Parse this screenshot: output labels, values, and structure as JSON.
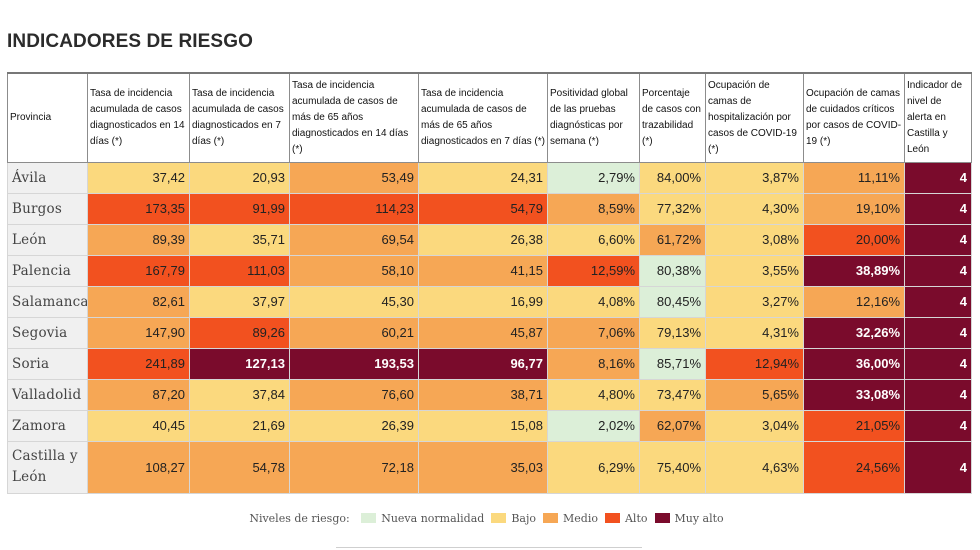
{
  "title": "INDICADORES DE RIESGO",
  "colors": {
    "nueva_normalidad": "#dcefd8",
    "bajo": "#fbd97e",
    "medio": "#f6a755",
    "alto": "#f2511f",
    "muy_alto": "#7a0b2c"
  },
  "table": {
    "headers": [
      "Provincia",
      "Tasa de incidencia acumulada de casos diagnosticados en 14 días (*)",
      "Tasa de incidencia acumulada de casos diagnosticados en 7 días (*)",
      "Tasa de incidencia acumulada de casos de más de 65 años diagnosticados en 14 días (*)",
      "Tasa de incidencia acumulada de casos de más de 65 años diagnosticados en 7 días (*)",
      "Positividad global de las pruebas diagnósticas por semana (*)",
      "Porcentaje de casos con trazabilidad (*)",
      "Ocupación de camas de hospitalización por casos de COVID-19 (*)",
      "Ocupación de camas de cuidados críticos por casos de COVID-19 (*)",
      "Indicador de nivel de alerta en Castilla y León"
    ],
    "rows": [
      {
        "province": "Ávila",
        "cells": [
          "37,42",
          "20,93",
          "53,49",
          "24,31",
          "2,79%",
          "84,00%",
          "3,87%",
          "11,11%",
          "4"
        ],
        "levels": [
          "bajo",
          "bajo",
          "medio",
          "bajo",
          "nn",
          "bajo",
          "bajo",
          "medio",
          "muy"
        ]
      },
      {
        "province": "Burgos",
        "cells": [
          "173,35",
          "91,99",
          "114,23",
          "54,79",
          "8,59%",
          "77,32%",
          "4,30%",
          "19,10%",
          "4"
        ],
        "levels": [
          "alto",
          "alto",
          "alto",
          "alto",
          "medio",
          "bajo",
          "bajo",
          "medio",
          "muy"
        ]
      },
      {
        "province": "León",
        "cells": [
          "89,39",
          "35,71",
          "69,54",
          "26,38",
          "6,60%",
          "61,72%",
          "3,08%",
          "20,00%",
          "4"
        ],
        "levels": [
          "medio",
          "bajo",
          "medio",
          "bajo",
          "bajo",
          "medio",
          "bajo",
          "alto",
          "muy"
        ]
      },
      {
        "province": "Palencia",
        "cells": [
          "167,79",
          "111,03",
          "58,10",
          "41,15",
          "12,59%",
          "80,38%",
          "3,55%",
          "38,89%",
          "4"
        ],
        "levels": [
          "alto",
          "alto",
          "medio",
          "medio",
          "alto",
          "nn",
          "bajo",
          "muy",
          "muy"
        ]
      },
      {
        "province": "Salamanca",
        "cells": [
          "82,61",
          "37,97",
          "45,30",
          "16,99",
          "4,08%",
          "80,45%",
          "3,27%",
          "12,16%",
          "4"
        ],
        "levels": [
          "medio",
          "bajo",
          "bajo",
          "bajo",
          "bajo",
          "nn",
          "bajo",
          "medio",
          "muy"
        ]
      },
      {
        "province": "Segovia",
        "cells": [
          "147,90",
          "89,26",
          "60,21",
          "45,87",
          "7,06%",
          "79,13%",
          "4,31%",
          "32,26%",
          "4"
        ],
        "levels": [
          "medio",
          "alto",
          "medio",
          "medio",
          "medio",
          "bajo",
          "bajo",
          "muy",
          "muy"
        ]
      },
      {
        "province": "Soria",
        "cells": [
          "241,89",
          "127,13",
          "193,53",
          "96,77",
          "8,16%",
          "85,71%",
          "12,94%",
          "36,00%",
          "4"
        ],
        "levels": [
          "alto",
          "muy",
          "muy",
          "muy",
          "medio",
          "nn",
          "alto",
          "muy",
          "muy"
        ]
      },
      {
        "province": "Valladolid",
        "cells": [
          "87,20",
          "37,84",
          "76,60",
          "38,71",
          "4,80%",
          "73,47%",
          "5,65%",
          "33,08%",
          "4"
        ],
        "levels": [
          "medio",
          "bajo",
          "medio",
          "medio",
          "bajo",
          "bajo",
          "medio",
          "muy",
          "muy"
        ]
      },
      {
        "province": "Zamora",
        "cells": [
          "40,45",
          "21,69",
          "26,39",
          "15,08",
          "2,02%",
          "62,07%",
          "3,04%",
          "21,05%",
          "4"
        ],
        "levels": [
          "bajo",
          "bajo",
          "bajo",
          "bajo",
          "nn",
          "medio",
          "bajo",
          "alto",
          "muy"
        ]
      },
      {
        "province": "Castilla y León",
        "cells": [
          "108,27",
          "54,78",
          "72,18",
          "35,03",
          "6,29%",
          "75,40%",
          "4,63%",
          "24,56%",
          "4"
        ],
        "levels": [
          "medio",
          "medio",
          "medio",
          "medio",
          "bajo",
          "bajo",
          "bajo",
          "alto",
          "muy"
        ]
      }
    ]
  },
  "legend": {
    "title": "Niveles de riesgo:",
    "items": [
      {
        "label": "Nueva normalidad",
        "level": "nn"
      },
      {
        "label": "Bajo",
        "level": "bajo"
      },
      {
        "label": "Medio",
        "level": "medio"
      },
      {
        "label": "Alto",
        "level": "alto"
      },
      {
        "label": "Muy alto",
        "level": "muy"
      }
    ]
  }
}
